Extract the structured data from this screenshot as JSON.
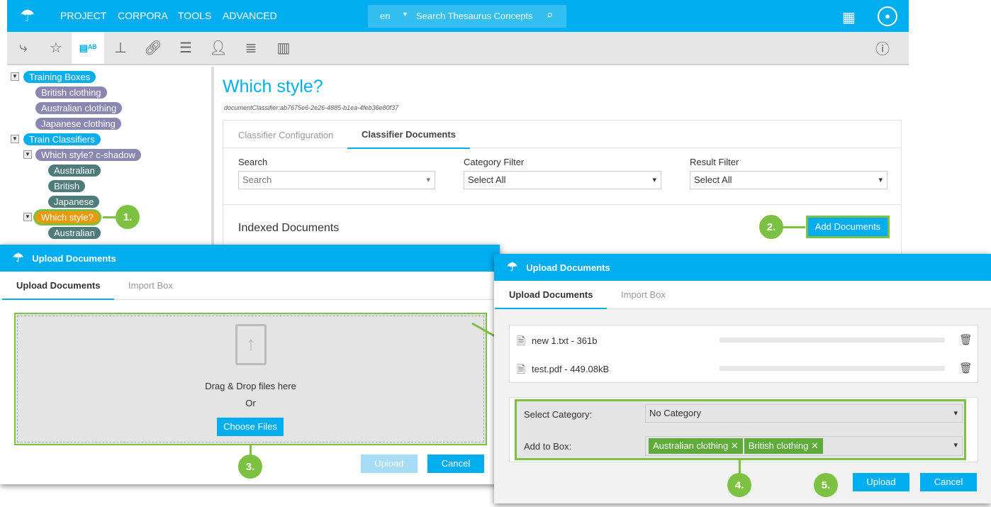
{
  "header": {
    "nav": [
      "PROJECT",
      "CORPORA",
      "TOOLS",
      "ADVANCED"
    ],
    "lang": "en",
    "search_placeholder": "Search Thesaurus Concepts"
  },
  "toolbar": {
    "icons": [
      "hierarchy-icon",
      "concept-scheme-icon",
      "classifier-icon",
      "taxonomy-icon",
      "link-icon",
      "list-icon",
      "user-settings-icon",
      "database-icon",
      "server-icon",
      "info-icon"
    ],
    "active": "classifier-icon"
  },
  "tree": {
    "training_boxes": "Training Boxes",
    "boxes": [
      "British clothing",
      "Australian clothing",
      "Japanese clothing"
    ],
    "train_classifiers": "Train Classifiers",
    "classifier1": "Which style? c-shadow",
    "classifier1_children": [
      "Australian",
      "British",
      "Japanese"
    ],
    "classifier2": "Which style?",
    "classifier2_children": [
      "Australian"
    ]
  },
  "main": {
    "title": "Which style?",
    "id": "documentClassifier:ab7675e6-2e26-4885-b1ea-4feb36e80f37",
    "tabs": [
      "Classifier Configuration",
      "Classifier Documents"
    ],
    "active_tab": "Classifier Documents",
    "search_label": "Search",
    "search_placeholder": "Search",
    "category_label": "Category Filter",
    "category_value": "Select All",
    "result_label": "Result Filter",
    "result_value": "Select All",
    "indexed": "Indexed Documents",
    "add_button": "Add Documents"
  },
  "dialog_left": {
    "title": "Upload Documents",
    "tabs": [
      "Upload Documents",
      "Import Box"
    ],
    "drop_text": "Drag & Drop files here",
    "or": "Or",
    "choose": "Choose Files",
    "upload": "Upload",
    "cancel": "Cancel"
  },
  "dialog_right": {
    "title": "Upload Documents",
    "tabs": [
      "Upload Documents",
      "Import Box"
    ],
    "files": [
      {
        "name": "new 1.txt - 361b",
        "progress": 0
      },
      {
        "name": "test.pdf - 449.08kB",
        "progress": 0
      }
    ],
    "category_label": "Select Category:",
    "category_value": "No Category",
    "box_label": "Add to Box:",
    "box_tags": [
      "Australian clothing",
      "British clothing"
    ],
    "upload": "Upload",
    "cancel": "Cancel"
  },
  "callouts": [
    "1.",
    "2.",
    "3.",
    "4.",
    "5."
  ],
  "colors": {
    "brand": "#00aeef",
    "callout": "#7cc142",
    "tag": "#5eaa3b",
    "selected_node": "#e89a0a"
  }
}
